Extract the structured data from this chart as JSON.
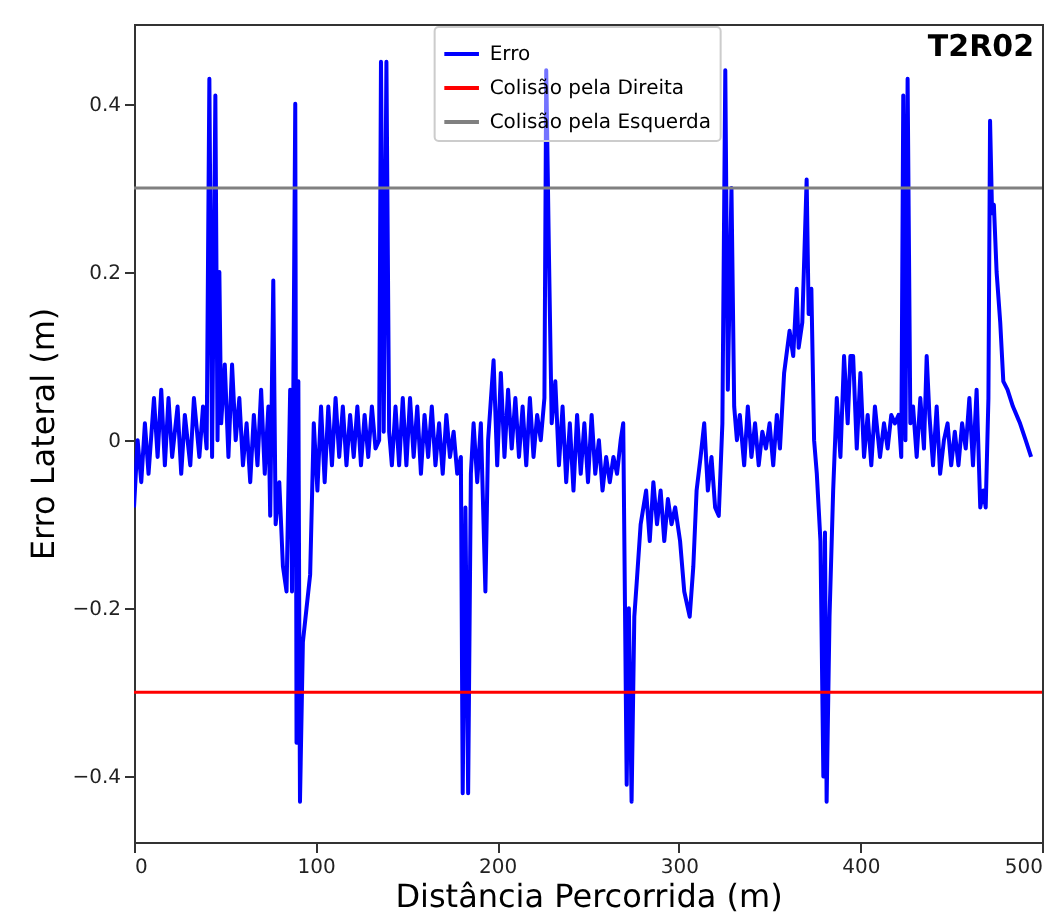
{
  "chart_data": {
    "type": "line",
    "xlabel": "Distância Percorrida (m)",
    "ylabel": "Erro Lateral (m)",
    "annotations": [
      "T2R02"
    ],
    "xlim": [
      0,
      500
    ],
    "ylim": [
      -0.478,
      0.495
    ],
    "xticks": [
      0,
      100,
      200,
      300,
      400,
      500
    ],
    "yticks": [
      {
        "value": -0.4,
        "label": "−0.4"
      },
      {
        "value": -0.2,
        "label": "−0.2"
      },
      0.0,
      0.2,
      0.4
    ],
    "grid": false,
    "legend": "top",
    "line_style": "solid",
    "marker": "none",
    "x": [
      0,
      2,
      4,
      6,
      8,
      11,
      13,
      15,
      17,
      19,
      21,
      24,
      26,
      28,
      31,
      33,
      36,
      38,
      40,
      41.5,
      43,
      44.8,
      46,
      47,
      48,
      50,
      52,
      54,
      56,
      58,
      60,
      62,
      64,
      66,
      68,
      70,
      72,
      74,
      75,
      76.7,
      78,
      80,
      82,
      84,
      86,
      87,
      88.8,
      89.5,
      90.5,
      91.4,
      93,
      95,
      97,
      99,
      101,
      103,
      105,
      107,
      109,
      111,
      113,
      115,
      117,
      119,
      121,
      123,
      125,
      127,
      129,
      131,
      133,
      135,
      136,
      137.5,
      139,
      140.5,
      142,
      144,
      146,
      148,
      150,
      152,
      154,
      156,
      158,
      160,
      162,
      164,
      166,
      168,
      170,
      172,
      174,
      176,
      178,
      180,
      181,
      182.5,
      184,
      185.5,
      187,
      189,
      191,
      193.5,
      195,
      198,
      200,
      202,
      204,
      206,
      208,
      210,
      212,
      214,
      216,
      218,
      220,
      222,
      224,
      226,
      227,
      228.5,
      230,
      232,
      234,
      236,
      238,
      240,
      242,
      244,
      246,
      248,
      250,
      252,
      254,
      256,
      258,
      260,
      262,
      264,
      266,
      268,
      269.4,
      271.3,
      272.5,
      274,
      275.5,
      276.8,
      279,
      282,
      284,
      286,
      288,
      290,
      292,
      294,
      296,
      298,
      300.7,
      303,
      306,
      308,
      309.8,
      312,
      314,
      316,
      318,
      320,
      322,
      324,
      325.6,
      327,
      329,
      330.5,
      332,
      333.6,
      336,
      338,
      340,
      342,
      344,
      346,
      348,
      350,
      352,
      354,
      355.7,
      358,
      361,
      363,
      364.9,
      366,
      368,
      370.4,
      371.5,
      373,
      374.5,
      376,
      378,
      379.6,
      380.5,
      381.4,
      383,
      385,
      387,
      389,
      391,
      393,
      394.5,
      396,
      398,
      400,
      402,
      404,
      406,
      408,
      410.8,
      413,
      415,
      417,
      419,
      421,
      422.5,
      423.6,
      424.8,
      426,
      427.5,
      429,
      431,
      433,
      435,
      436.5,
      438,
      440,
      442,
      443.9,
      446,
      448,
      450,
      452,
      454,
      456,
      458,
      460,
      462,
      464,
      466,
      467.7,
      469,
      470.5,
      471.4,
      472.5,
      473.5,
      475,
      477,
      478.7,
      481,
      484,
      487.9,
      491,
      494
    ],
    "series": [
      {
        "name": "Erro",
        "color": "#0000ff",
        "values": [
          -0.08,
          0.0,
          -0.05,
          0.02,
          -0.04,
          0.05,
          -0.02,
          0.06,
          -0.03,
          0.05,
          -0.02,
          0.04,
          -0.04,
          0.03,
          -0.03,
          0.05,
          -0.02,
          0.04,
          -0.01,
          0.43,
          -0.02,
          0.41,
          0.0,
          0.2,
          0.02,
          0.09,
          -0.02,
          0.09,
          0.0,
          0.05,
          -0.03,
          0.02,
          -0.05,
          0.03,
          -0.03,
          0.06,
          -0.04,
          0.04,
          -0.09,
          0.19,
          -0.1,
          -0.05,
          -0.15,
          -0.18,
          0.06,
          -0.18,
          0.4,
          -0.36,
          0.07,
          -0.43,
          -0.24,
          -0.2,
          -0.16,
          0.02,
          -0.06,
          0.04,
          -0.05,
          0.04,
          -0.03,
          0.05,
          -0.02,
          0.04,
          -0.03,
          0.03,
          -0.02,
          0.04,
          -0.03,
          0.03,
          -0.02,
          0.04,
          -0.01,
          0.0,
          0.45,
          0.01,
          0.45,
          0.01,
          -0.03,
          0.04,
          -0.03,
          0.05,
          -0.03,
          0.05,
          -0.02,
          0.04,
          -0.04,
          0.03,
          -0.02,
          0.04,
          -0.03,
          0.02,
          -0.04,
          0.03,
          -0.02,
          0.01,
          -0.04,
          -0.02,
          -0.42,
          -0.08,
          -0.42,
          -0.04,
          0.02,
          -0.05,
          0.02,
          -0.18,
          0.0,
          0.095,
          -0.03,
          0.08,
          -0.02,
          0.06,
          -0.01,
          0.05,
          -0.02,
          0.04,
          -0.03,
          0.05,
          -0.02,
          0.03,
          0.0,
          0.05,
          0.44,
          0.22,
          0.02,
          0.07,
          -0.03,
          0.04,
          -0.05,
          0.02,
          -0.06,
          0.03,
          -0.04,
          0.02,
          -0.05,
          0.03,
          -0.04,
          0.0,
          -0.06,
          -0.02,
          -0.05,
          -0.02,
          -0.04,
          0.0,
          0.02,
          -0.41,
          -0.2,
          -0.43,
          -0.21,
          -0.17,
          -0.1,
          -0.06,
          -0.12,
          -0.05,
          -0.1,
          -0.06,
          -0.12,
          -0.07,
          -0.1,
          -0.08,
          -0.12,
          -0.18,
          -0.21,
          -0.15,
          -0.06,
          -0.02,
          0.02,
          -0.06,
          -0.02,
          -0.08,
          -0.09,
          0.02,
          0.44,
          0.06,
          0.3,
          0.04,
          0.0,
          0.03,
          -0.03,
          0.04,
          -0.02,
          0.02,
          -0.03,
          0.01,
          -0.01,
          0.02,
          -0.03,
          0.03,
          -0.01,
          0.08,
          0.13,
          0.1,
          0.18,
          0.11,
          0.14,
          0.31,
          0.15,
          0.18,
          0.0,
          -0.04,
          -0.12,
          -0.4,
          -0.11,
          -0.43,
          -0.21,
          -0.06,
          0.05,
          -0.02,
          0.1,
          0.02,
          0.1,
          0.1,
          -0.01,
          0.08,
          -0.02,
          0.03,
          -0.03,
          0.04,
          -0.02,
          0.02,
          -0.01,
          0.03,
          0.02,
          0.03,
          -0.02,
          0.41,
          0.0,
          0.43,
          0.02,
          0.04,
          -0.02,
          0.05,
          -0.01,
          0.1,
          0.03,
          -0.03,
          0.04,
          -0.04,
          0.0,
          0.02,
          -0.03,
          0.01,
          -0.03,
          0.02,
          -0.01,
          0.05,
          -0.03,
          0.06,
          -0.08,
          -0.06,
          -0.08,
          0.05,
          0.38,
          0.27,
          0.28,
          0.2,
          0.14,
          0.07,
          0.06,
          0.04,
          0.02,
          0.0,
          -0.02
        ]
      }
    ],
    "ref_lines": [
      {
        "axis": "y",
        "value": -0.3,
        "label": "Colisão pela Direita",
        "color": "#ff0000"
      },
      {
        "axis": "y",
        "value": 0.3,
        "label": "Colisão pela Esquerda",
        "color": "#808080"
      }
    ]
  }
}
